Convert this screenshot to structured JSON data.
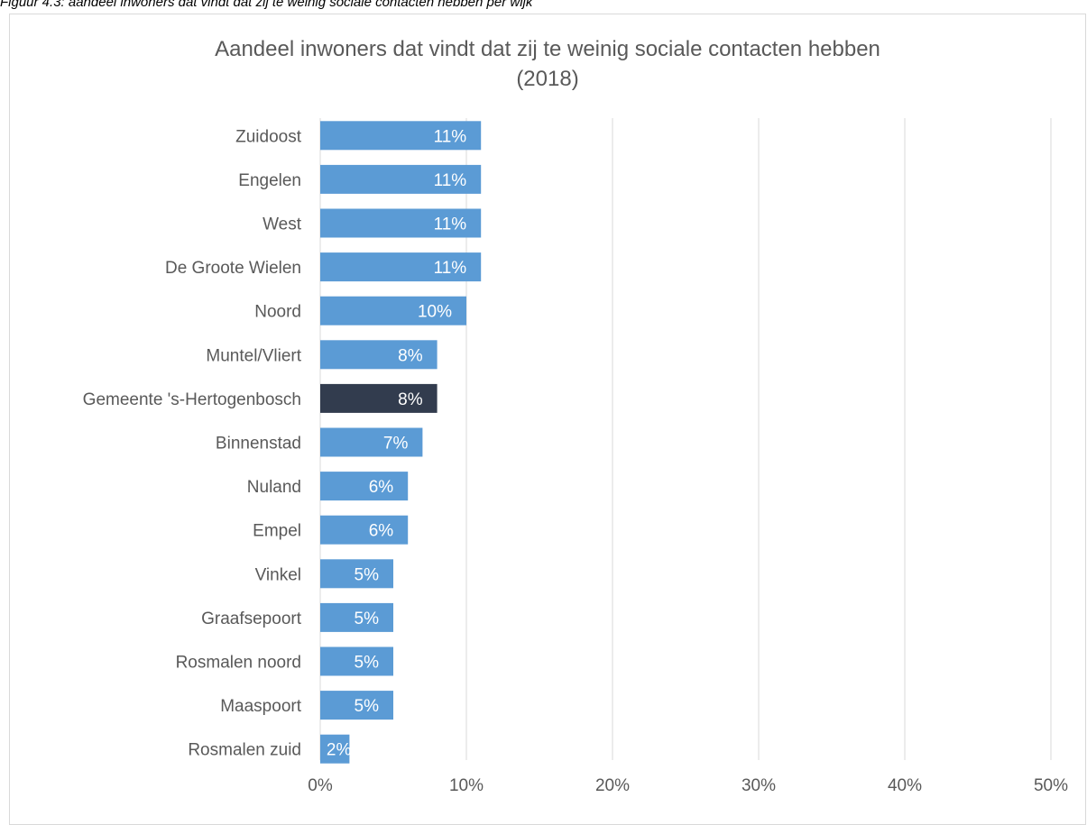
{
  "caption": "Figuur 4.3: aandeel inwoners dat vindt dat zij te weinig sociale contacten hebben per wijk",
  "chart_data": {
    "type": "bar",
    "orientation": "horizontal",
    "title_line1": "Aandeel inwoners dat vindt dat zij te weinig sociale contacten hebben",
    "title_line2": "(2018)",
    "categories": [
      "Zuidoost",
      "Engelen",
      "West",
      "De Groote Wielen",
      "Noord",
      "Muntel/Vliert",
      "Gemeente 's-Hertogenbosch",
      "Binnenstad",
      "Nuland",
      "Empel",
      "Vinkel",
      "Graafsepoort",
      "Rosmalen noord",
      "Maaspoort",
      "Rosmalen zuid"
    ],
    "values": [
      11,
      11,
      11,
      11,
      10,
      8,
      8,
      7,
      6,
      6,
      5,
      5,
      5,
      5,
      2
    ],
    "data_labels": [
      "11%",
      "11%",
      "11%",
      "11%",
      "10%",
      "8%",
      "8%",
      "7%",
      "6%",
      "6%",
      "5%",
      "5%",
      "5%",
      "5%",
      "2%"
    ],
    "highlight_category": "Gemeente 's-Hertogenbosch",
    "xlim": [
      0,
      50
    ],
    "x_ticks": [
      0,
      10,
      20,
      30,
      40,
      50
    ],
    "x_tick_labels": [
      "0%",
      "10%",
      "20%",
      "30%",
      "40%",
      "50%"
    ],
    "xlabel": "",
    "ylabel": "",
    "grid": "vertical",
    "legend": "none",
    "colors": {
      "bar": "#5b9bd5",
      "highlight": "#323c4e",
      "grid": "#d9d9d9",
      "text": "#595959",
      "data_label": "#ffffff"
    }
  }
}
